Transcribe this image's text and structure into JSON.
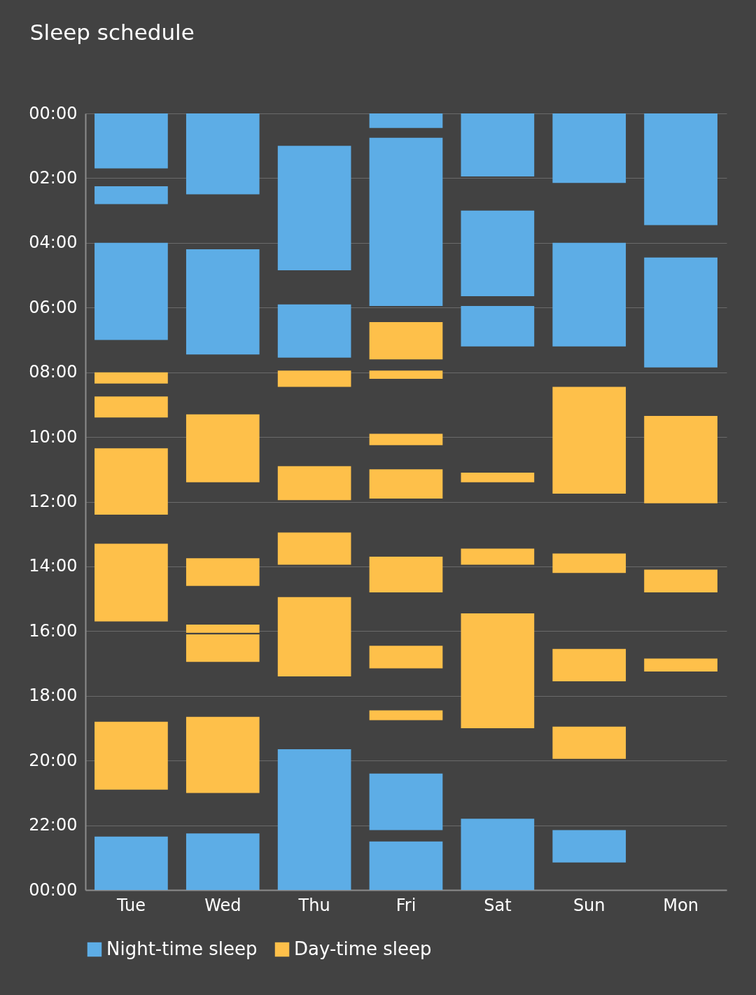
{
  "chart_data": {
    "type": "bar",
    "title": "Sleep schedule",
    "categories": [
      "Tue",
      "Wed",
      "Thu",
      "Fri",
      "Sat",
      "Sun",
      "Mon"
    ],
    "series": [
      {
        "name": "Night-time sleep",
        "color": "#5dade6",
        "x": [
          "Tue",
          "Tue",
          "Tue",
          "Tue",
          "Wed",
          "Wed",
          "Wed",
          "Thu",
          "Thu",
          "Thu",
          "Fri",
          "Fri",
          "Fri",
          "Fri",
          "Sat",
          "Sat",
          "Sat",
          "Sat",
          "Sun",
          "Sun",
          "Sun",
          "Mon",
          "Mon"
        ],
        "base": [
          0,
          2.25,
          4.0,
          22.35,
          0,
          4.2,
          22.25,
          1.0,
          5.9,
          19.65,
          0,
          0.75,
          20.4,
          22.5,
          0,
          3.0,
          5.95,
          21.8,
          0,
          4.0,
          22.15,
          0,
          4.45
        ],
        "values": [
          1.7,
          0.55,
          3.0,
          1.65,
          2.5,
          3.25,
          1.75,
          3.85,
          1.65,
          4.35,
          0.45,
          5.2,
          1.75,
          1.5,
          1.95,
          2.65,
          1.25,
          2.2,
          2.15,
          3.2,
          1.0,
          3.45,
          3.4
        ]
      },
      {
        "name": "Day-time sleep",
        "color": "#fec04a",
        "x": [
          "Tue",
          "Tue",
          "Tue",
          "Tue",
          "Tue",
          "Wed",
          "Wed",
          "Wed",
          "Wed",
          "Wed",
          "Thu",
          "Thu",
          "Thu",
          "Thu",
          "Fri",
          "Fri",
          "Fri",
          "Fri",
          "Fri",
          "Fri",
          "Fri",
          "Sat",
          "Sat",
          "Sat",
          "Sun",
          "Sun",
          "Sun",
          "Sun",
          "Mon",
          "Mon",
          "Mon"
        ],
        "base": [
          8.0,
          8.75,
          10.35,
          13.3,
          18.8,
          9.3,
          13.75,
          15.8,
          16.1,
          18.65,
          7.95,
          10.9,
          12.95,
          14.95,
          6.45,
          7.95,
          9.9,
          11.0,
          13.7,
          16.45,
          18.45,
          11.1,
          13.45,
          15.45,
          8.45,
          13.6,
          16.55,
          18.95,
          9.35,
          14.1,
          16.85
        ],
        "values": [
          0.35,
          0.65,
          2.05,
          2.4,
          2.1,
          2.1,
          0.85,
          0.25,
          0.85,
          2.35,
          0.5,
          1.05,
          1.0,
          2.45,
          1.15,
          0.25,
          0.35,
          0.9,
          1.1,
          0.7,
          0.3,
          0.3,
          0.5,
          3.55,
          3.3,
          0.6,
          1.0,
          1.0,
          2.7,
          0.7,
          0.4
        ]
      }
    ],
    "ylim": [
      24,
      0
    ],
    "yticks": [
      {
        "value": 0,
        "label": "00:00"
      },
      {
        "value": 2,
        "label": "02:00"
      },
      {
        "value": 4,
        "label": "04:00"
      },
      {
        "value": 6,
        "label": "06:00"
      },
      {
        "value": 8,
        "label": "08:00"
      },
      {
        "value": 10,
        "label": "10:00"
      },
      {
        "value": 12,
        "label": "12:00"
      },
      {
        "value": 14,
        "label": "14:00"
      },
      {
        "value": 16,
        "label": "16:00"
      },
      {
        "value": 18,
        "label": "18:00"
      },
      {
        "value": 20,
        "label": "20:00"
      },
      {
        "value": 22,
        "label": "22:00"
      },
      {
        "value": 24,
        "label": "00:00"
      }
    ],
    "grid": "y",
    "legend": "bottom"
  }
}
